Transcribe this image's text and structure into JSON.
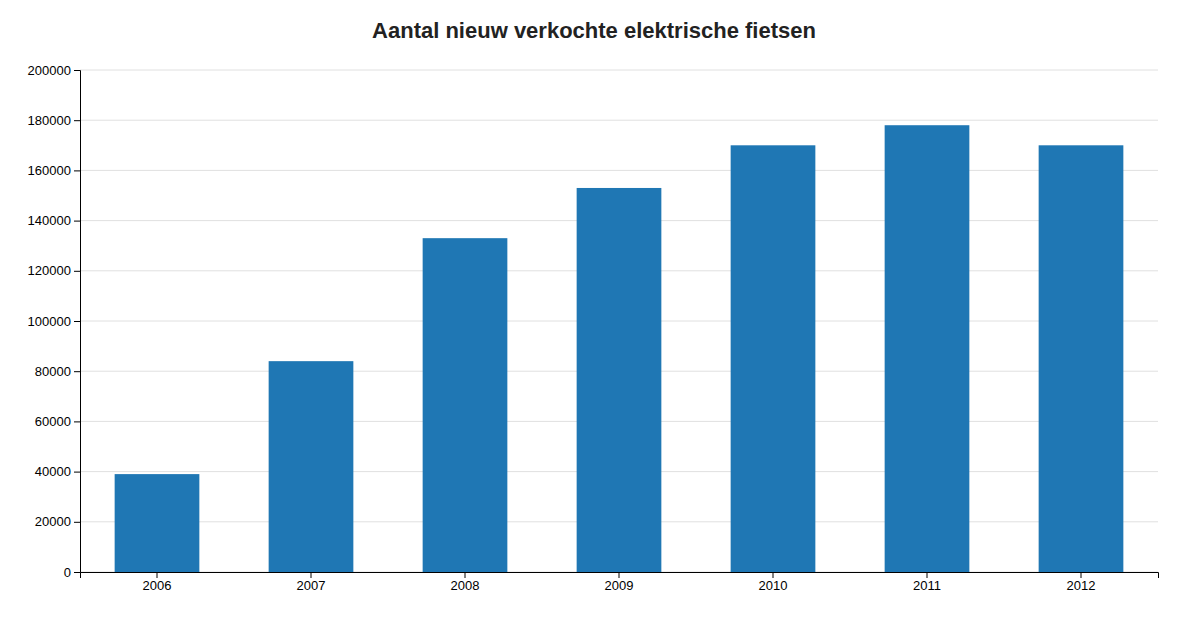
{
  "chart_data": {
    "type": "bar",
    "title": "Aantal nieuw verkochte elektrische fietsen",
    "categories": [
      "2006",
      "2007",
      "2008",
      "2009",
      "2010",
      "2011",
      "2012"
    ],
    "values": [
      39000,
      84000,
      133000,
      153000,
      170000,
      178000,
      170000
    ],
    "ylim": [
      0,
      200000
    ],
    "yticks": [
      0,
      20000,
      40000,
      60000,
      80000,
      100000,
      120000,
      140000,
      160000,
      180000,
      200000
    ],
    "grid": true
  }
}
